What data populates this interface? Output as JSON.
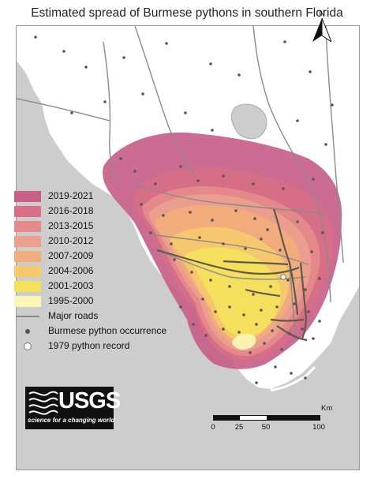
{
  "title": "Estimated spread of Burmese pythons in southern Florida",
  "north_arrow": {
    "label": "N"
  },
  "legend": {
    "periods": [
      {
        "label": "2019-2021",
        "color": "#c9608a"
      },
      {
        "label": "2016-2018",
        "color": "#d86f86"
      },
      {
        "label": "2013-2015",
        "color": "#e58a8a"
      },
      {
        "label": "2010-2012",
        "color": "#eda08e"
      },
      {
        "label": "2007-2009",
        "color": "#f2ad7c"
      },
      {
        "label": "2004-2006",
        "color": "#f6c96a"
      },
      {
        "label": "2001-2003",
        "color": "#f3e15c"
      },
      {
        "label": "1995-2000",
        "color": "#fbf6b4"
      }
    ],
    "symbols": [
      {
        "label": "Major roads",
        "symbol": "line"
      },
      {
        "label": "Burmese python occurrence",
        "symbol": "dot"
      },
      {
        "label": "1979 python record",
        "symbol": "open-circle"
      }
    ]
  },
  "logo": {
    "name": "USGS",
    "tagline": "science for a changing world"
  },
  "scale_bar": {
    "unit": "Km",
    "ticks": [
      0,
      25,
      50,
      100
    ]
  }
}
